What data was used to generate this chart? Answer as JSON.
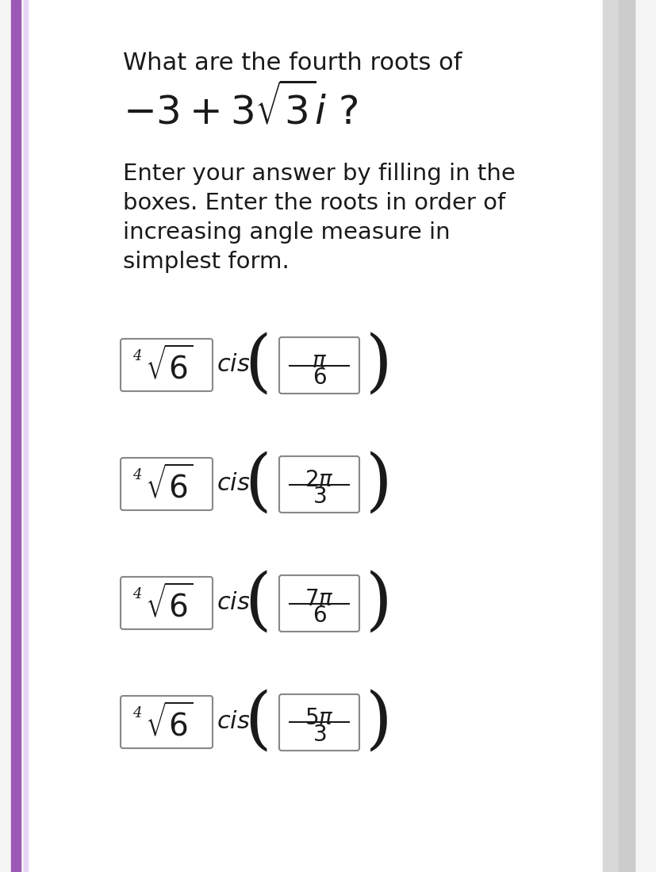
{
  "bg_color": "#f5f5f5",
  "card_color": "#ffffff",
  "left_bar_color": "#9b59b6",
  "text_color": "#1a1a1a",
  "box_border_color": "#888888",
  "title_line1": "What are the fourth roots of",
  "title_line2": "$-3 + 3\\sqrt{3}i$ ?",
  "instruction": "Enter your answer by filling in the\nboxes. Enter the roots in order of\nincreasing angle measure in\nsimplest form.",
  "roots": [
    {
      "numerator": "\\pi",
      "denominator": "6"
    },
    {
      "numerator": "2\\pi",
      "denominator": "3"
    },
    {
      "numerator": "7\\pi",
      "denominator": "6"
    },
    {
      "numerator": "5\\pi",
      "denominator": "3"
    }
  ],
  "radical_label": "$\\sqrt[4]{6}$",
  "cis_label": "$cis$",
  "fig_width": 8.28,
  "fig_height": 10.99
}
